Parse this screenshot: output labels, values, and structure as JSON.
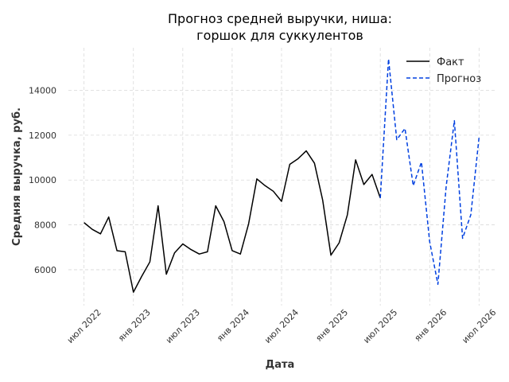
{
  "chart_data": {
    "type": "line",
    "title": [
      "Прогноз средней выручки, ниша:",
      "горшок для суккулентов"
    ],
    "xlabel": "Дата",
    "ylabel": "Средняя выручка, руб.",
    "x_tick_labels": [
      "июл 2022",
      "янв 2023",
      "июл 2023",
      "янв 2024",
      "июл 2024",
      "янв 2025",
      "июл 2025",
      "янв 2026",
      "июл 2026"
    ],
    "y_tick_labels": [
      "6000",
      "8000",
      "10000",
      "12000",
      "14000"
    ],
    "ylim": [
      4400,
      15900
    ],
    "grid": true,
    "legend_position": "top-right",
    "colors": {
      "fact": "#000000",
      "forecast": "#0040e0",
      "grid": "#d9d9d9"
    },
    "series": [
      {
        "name": "Факт",
        "style": "solid",
        "dates": [
          "2022-07",
          "2022-08",
          "2022-09",
          "2022-10",
          "2022-11",
          "2022-12",
          "2023-01",
          "2023-02",
          "2023-03",
          "2023-04",
          "2023-05",
          "2023-06",
          "2023-07",
          "2023-08",
          "2023-09",
          "2023-10",
          "2023-11",
          "2023-12",
          "2024-01",
          "2024-02",
          "2024-03",
          "2024-04",
          "2024-05",
          "2024-06",
          "2024-07",
          "2024-08",
          "2024-09",
          "2024-10",
          "2024-11",
          "2024-12",
          "2025-01",
          "2025-02",
          "2025-03",
          "2025-04",
          "2025-05",
          "2025-06",
          "2025-07"
        ],
        "values": [
          8100,
          7800,
          7600,
          8350,
          6850,
          6800,
          5000,
          5700,
          6350,
          8850,
          5800,
          6750,
          7150,
          6900,
          6700,
          6800,
          8850,
          8150,
          6850,
          6700,
          8050,
          10050,
          9750,
          9500,
          9050,
          10700,
          10950,
          11300,
          10750,
          9100,
          6650,
          7200,
          8450,
          10900,
          9800,
          10250,
          9200
        ]
      },
      {
        "name": "Прогноз",
        "style": "dashed",
        "dates": [
          "2025-07",
          "2025-08",
          "2025-09",
          "2025-10",
          "2025-11",
          "2025-12",
          "2026-01",
          "2026-02",
          "2026-03",
          "2026-04",
          "2026-05",
          "2026-06",
          "2026-07"
        ],
        "values": [
          9200,
          15400,
          11800,
          12300,
          9750,
          10800,
          7250,
          5350,
          9700,
          12650,
          7400,
          8450,
          11900
        ]
      }
    ]
  }
}
